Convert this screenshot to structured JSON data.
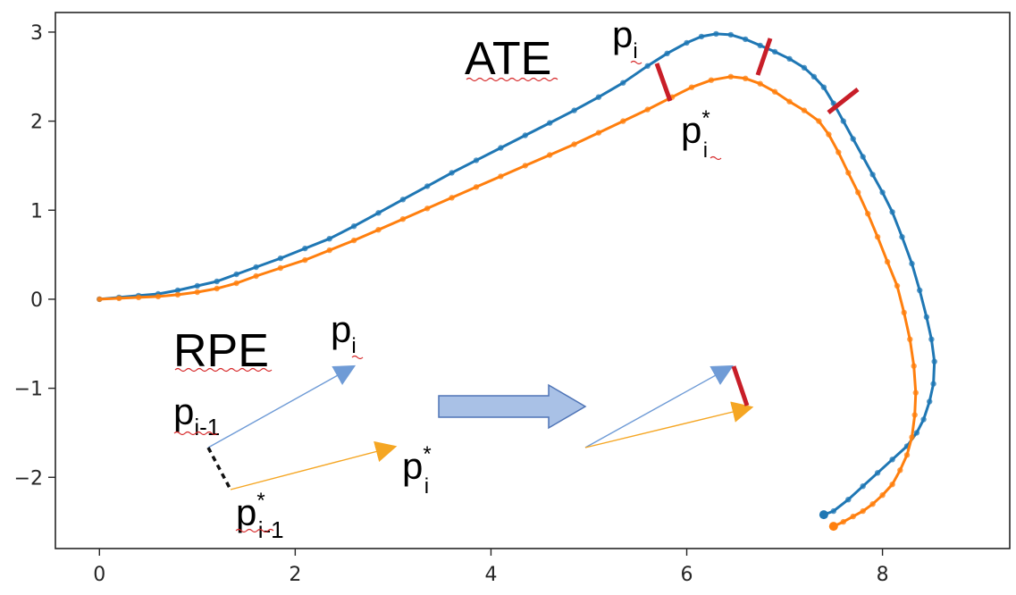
{
  "chart_data": {
    "type": "line",
    "title": "",
    "xlabel": "",
    "ylabel": "",
    "xlim": [
      -0.45,
      9.3
    ],
    "ylim": [
      -2.8,
      3.22
    ],
    "x_ticks": [
      0,
      2,
      4,
      6,
      8
    ],
    "y_ticks": [
      3,
      2,
      1,
      0,
      -1,
      -2
    ],
    "x_tick_labels": [
      "0",
      "2",
      "4",
      "6",
      "8"
    ],
    "y_tick_labels": [
      "3",
      "2",
      "1",
      "0",
      "−1",
      "−2"
    ],
    "grid": false,
    "colors": {
      "blue": "#1f77b4",
      "orange": "#ff7f0e",
      "error": "#c81e28",
      "arrow_fill": "#a9c1e6",
      "arrow_stroke": "#4f74b6"
    },
    "series": [
      {
        "color": "#1f77b4",
        "x": [
          0.0,
          0.2,
          0.4,
          0.6,
          0.8,
          1.0,
          1.2,
          1.4,
          1.6,
          1.85,
          2.1,
          2.35,
          2.6,
          2.85,
          3.1,
          3.35,
          3.6,
          3.85,
          4.1,
          4.35,
          4.6,
          4.85,
          5.1,
          5.35,
          5.6,
          5.8,
          6.0,
          6.15,
          6.3,
          6.45,
          6.6,
          6.75,
          6.9,
          7.05,
          7.2,
          7.3,
          7.4,
          7.5,
          7.6,
          7.7,
          7.8,
          7.9,
          8.0,
          8.1,
          8.2,
          8.3,
          8.38,
          8.45,
          8.5,
          8.53,
          8.52,
          8.48,
          8.42,
          8.35,
          8.25,
          8.1,
          7.95,
          7.8,
          7.65,
          7.5,
          7.4
        ],
        "y": [
          0.0,
          0.02,
          0.04,
          0.06,
          0.1,
          0.15,
          0.2,
          0.28,
          0.36,
          0.46,
          0.57,
          0.68,
          0.82,
          0.97,
          1.12,
          1.27,
          1.42,
          1.56,
          1.7,
          1.84,
          1.98,
          2.12,
          2.27,
          2.43,
          2.62,
          2.76,
          2.88,
          2.95,
          2.98,
          2.97,
          2.92,
          2.85,
          2.78,
          2.7,
          2.6,
          2.5,
          2.38,
          2.2,
          2.0,
          1.8,
          1.6,
          1.4,
          1.2,
          0.98,
          0.7,
          0.4,
          0.1,
          -0.2,
          -0.45,
          -0.7,
          -0.95,
          -1.15,
          -1.35,
          -1.5,
          -1.65,
          -1.8,
          -1.95,
          -2.1,
          -2.25,
          -2.38,
          -2.42
        ]
      },
      {
        "color": "#ff7f0e",
        "x": [
          0.0,
          0.2,
          0.4,
          0.6,
          0.8,
          1.0,
          1.2,
          1.4,
          1.6,
          1.85,
          2.1,
          2.35,
          2.6,
          2.85,
          3.1,
          3.35,
          3.6,
          3.85,
          4.1,
          4.35,
          4.6,
          4.85,
          5.1,
          5.35,
          5.6,
          5.85,
          6.05,
          6.25,
          6.45,
          6.6,
          6.75,
          6.9,
          7.05,
          7.2,
          7.35,
          7.45,
          7.55,
          7.65,
          7.75,
          7.85,
          7.95,
          8.05,
          8.15,
          8.22,
          8.28,
          8.32,
          8.34,
          8.33,
          8.3,
          8.25,
          8.18,
          8.1,
          8.0,
          7.9,
          7.8,
          7.7,
          7.6,
          7.5
        ],
        "y": [
          0.0,
          0.01,
          0.02,
          0.03,
          0.05,
          0.08,
          0.12,
          0.18,
          0.26,
          0.35,
          0.44,
          0.55,
          0.66,
          0.78,
          0.9,
          1.02,
          1.14,
          1.26,
          1.38,
          1.5,
          1.62,
          1.74,
          1.87,
          2.0,
          2.13,
          2.27,
          2.38,
          2.46,
          2.5,
          2.48,
          2.42,
          2.33,
          2.22,
          2.12,
          2.0,
          1.85,
          1.65,
          1.42,
          1.2,
          0.96,
          0.7,
          0.42,
          0.15,
          -0.15,
          -0.45,
          -0.75,
          -1.05,
          -1.3,
          -1.55,
          -1.75,
          -1.92,
          -2.08,
          -2.2,
          -2.3,
          -2.38,
          -2.44,
          -2.5,
          -2.55
        ]
      }
    ],
    "annotations": {
      "ate_label": "ATE",
      "rpe_label": "RPE",
      "p_i_top": {
        "base": "p",
        "sub": "i"
      },
      "p_star_i_top": {
        "base": "p",
        "sup": "*",
        "sub": "i"
      },
      "p_i_rpe": {
        "base": "p",
        "sub": "i"
      },
      "p_i_minus_1": {
        "base": "p",
        "sub": "i-1"
      },
      "p_star_i_rpe": {
        "base": "p",
        "sup": "*",
        "sub": "i"
      },
      "p_star_i_minus_1": {
        "base": "p",
        "sup": "*",
        "sub": "i-1"
      }
    }
  }
}
